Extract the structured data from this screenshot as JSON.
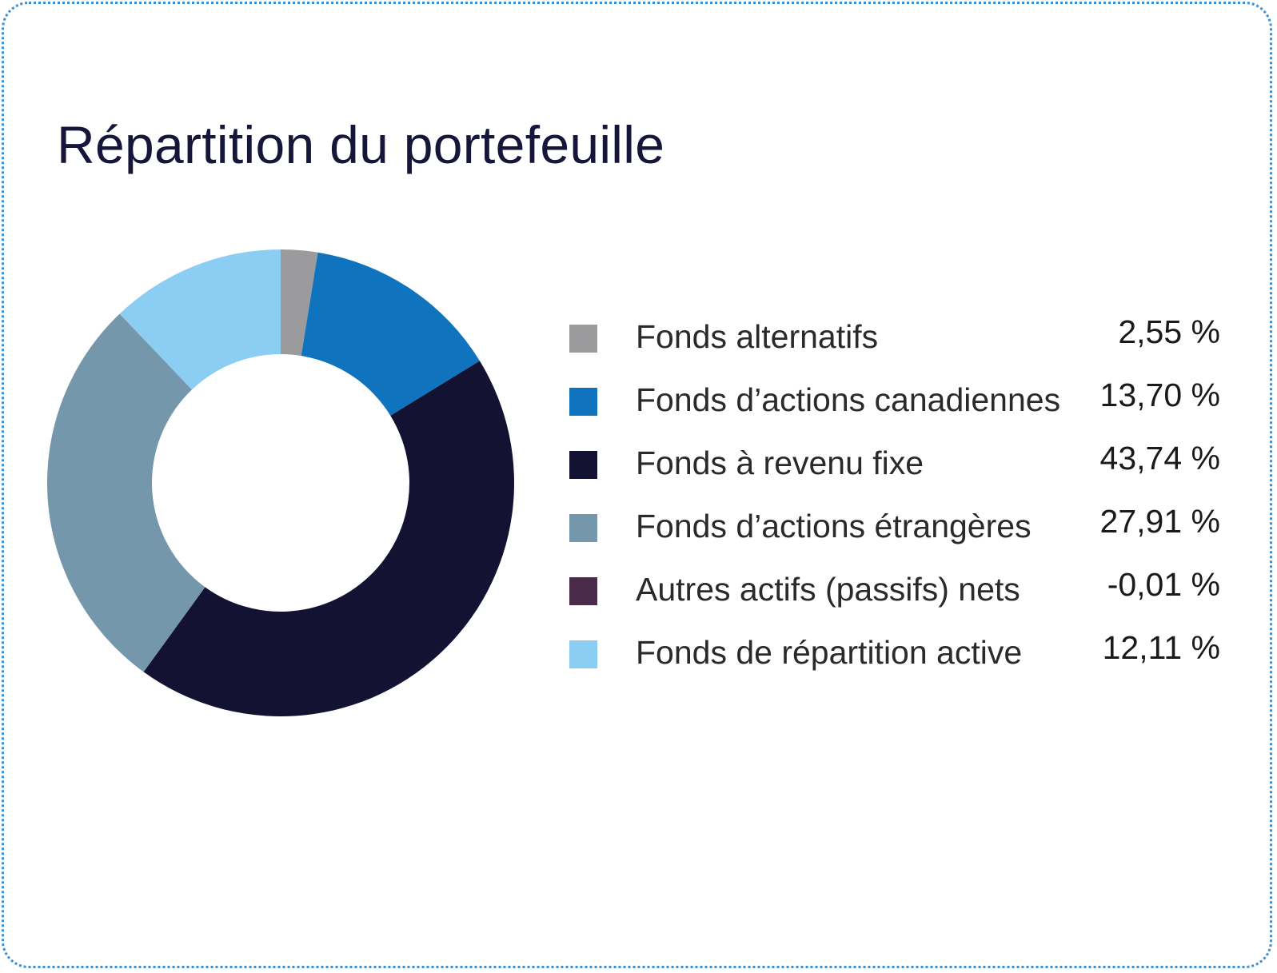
{
  "title": "Répartition du portefeuille",
  "chart_data": {
    "type": "donut",
    "title": "Répartition du portefeuille",
    "start_angle_deg": 0,
    "direction": "clockwise",
    "slices": [
      {
        "label": "Fonds alternatifs",
        "value": 2.55,
        "display": "2,55 %",
        "color": "#9b9b9d"
      },
      {
        "label": "Fonds d’actions canadiennes",
        "value": 13.7,
        "display": "13,70 %",
        "color": "#0f73bd"
      },
      {
        "label": "Fonds à revenu fixe",
        "value": 43.74,
        "display": "43,74 %",
        "color": "#131233"
      },
      {
        "label": "Fonds d’actions étrangères",
        "value": 27.91,
        "display": "27,91 %",
        "color": "#7597ab"
      },
      {
        "label": "Autres actifs (passifs) nets",
        "value": -0.01,
        "display": "-0,01 %",
        "color": "#4a2b4a"
      },
      {
        "label": "Fonds de répartition active",
        "value": 12.11,
        "display": "12,11 %",
        "color": "#8ccdf3"
      }
    ],
    "legend_position": "right"
  }
}
